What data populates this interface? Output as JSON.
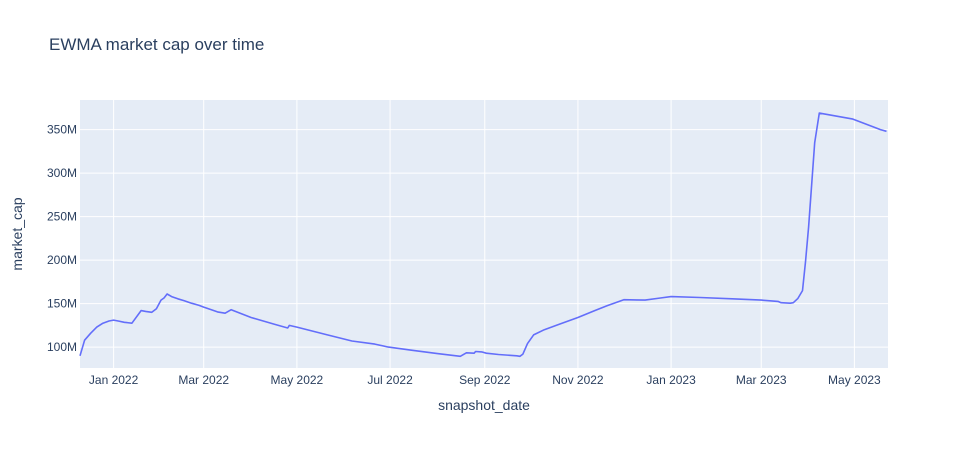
{
  "chart_data": {
    "type": "line",
    "title": "EWMA market cap over time",
    "xlabel": "snapshot_date",
    "ylabel": "market_cap",
    "grid": true,
    "legend": "none",
    "xlim": [
      "2021-12-10",
      "2023-05-23"
    ],
    "ylim": [
      76000000,
      384000000
    ],
    "x_ticks": [
      {
        "date": "2022-01-01",
        "label": "Jan 2022"
      },
      {
        "date": "2022-03-01",
        "label": "Mar 2022"
      },
      {
        "date": "2022-05-01",
        "label": "May 2022"
      },
      {
        "date": "2022-07-01",
        "label": "Jul 2022"
      },
      {
        "date": "2022-09-01",
        "label": "Sep 2022"
      },
      {
        "date": "2022-11-01",
        "label": "Nov 2022"
      },
      {
        "date": "2023-01-01",
        "label": "Jan 2023"
      },
      {
        "date": "2023-03-01",
        "label": "Mar 2023"
      },
      {
        "date": "2023-05-01",
        "label": "May 2023"
      }
    ],
    "y_ticks": [
      {
        "value": 100000000,
        "label": "100M"
      },
      {
        "value": 150000000,
        "label": "150M"
      },
      {
        "value": 200000000,
        "label": "200M"
      },
      {
        "value": 250000000,
        "label": "250M"
      },
      {
        "value": 300000000,
        "label": "300M"
      },
      {
        "value": 350000000,
        "label": "350M"
      }
    ],
    "series": [
      {
        "color": "#636efa",
        "x": [
          "2021-12-10",
          "2021-12-13",
          "2021-12-17",
          "2021-12-21",
          "2021-12-25",
          "2021-12-29",
          "2022-01-01",
          "2022-01-04",
          "2022-01-08",
          "2022-01-13",
          "2022-01-19",
          "2022-01-22",
          "2022-01-26",
          "2022-01-29",
          "2022-02-01",
          "2022-02-03",
          "2022-02-05",
          "2022-02-08",
          "2022-02-12",
          "2022-02-16",
          "2022-02-21",
          "2022-02-26",
          "2022-03-01",
          "2022-03-06",
          "2022-03-10",
          "2022-03-15",
          "2022-03-19",
          "2022-04-01",
          "2022-04-16",
          "2022-04-25",
          "2022-04-26",
          "2022-05-01",
          "2022-05-20",
          "2022-06-06",
          "2022-06-21",
          "2022-06-30",
          "2022-07-15",
          "2022-08-01",
          "2022-08-16",
          "2022-08-20",
          "2022-08-25",
          "2022-08-26",
          "2022-08-30",
          "2022-09-02",
          "2022-09-10",
          "2022-09-22",
          "2022-09-24",
          "2022-09-26",
          "2022-09-29",
          "2022-10-03",
          "2022-10-10",
          "2022-10-20",
          "2022-11-01",
          "2022-11-12",
          "2022-11-20",
          "2022-12-01",
          "2022-12-15",
          "2022-12-25",
          "2023-01-01",
          "2023-01-20",
          "2023-02-10",
          "2023-03-01",
          "2023-03-12",
          "2023-03-14",
          "2023-03-20",
          "2023-03-22",
          "2023-03-25",
          "2023-03-28",
          "2023-03-30",
          "2023-04-01",
          "2023-04-05",
          "2023-04-08",
          "2023-04-30",
          "2023-05-18",
          "2023-05-22"
        ],
        "y": [
          90000000,
          108000000,
          116000000,
          123000000,
          127500000,
          130000000,
          131000000,
          130000000,
          128500000,
          127500000,
          142000000,
          141000000,
          140000000,
          144000000,
          154000000,
          156500000,
          161000000,
          158000000,
          155500000,
          153500000,
          150500000,
          148000000,
          146000000,
          143000000,
          140500000,
          139000000,
          143000000,
          134000000,
          126500000,
          122000000,
          125000000,
          123000000,
          114500000,
          107000000,
          103500000,
          100000000,
          96500000,
          92500000,
          89500000,
          93500000,
          93000000,
          95000000,
          94500000,
          93000000,
          91500000,
          90000000,
          89500000,
          92000000,
          104000000,
          114000000,
          120000000,
          126500000,
          134000000,
          142000000,
          147500000,
          154500000,
          154000000,
          156500000,
          158000000,
          157000000,
          155500000,
          154000000,
          152500000,
          151000000,
          150500000,
          151000000,
          156000000,
          165000000,
          198000000,
          238000000,
          335000000,
          369000000,
          362000000,
          350000000,
          348000000
        ]
      }
    ]
  }
}
